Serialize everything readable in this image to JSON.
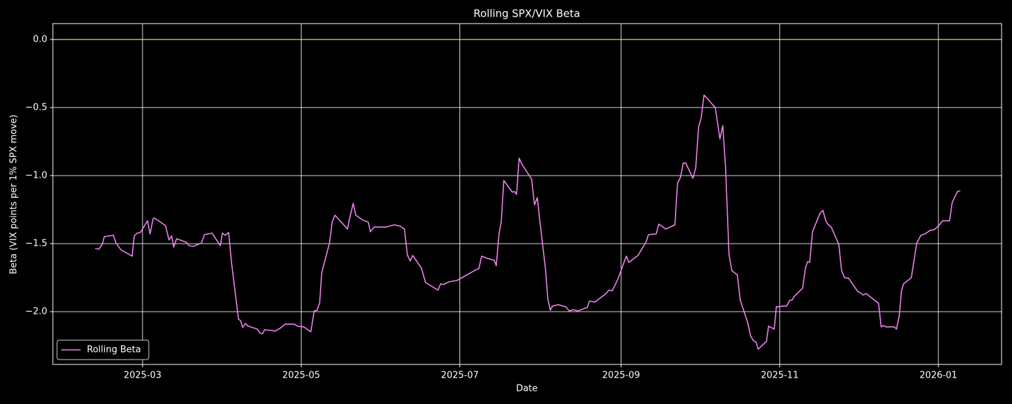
{
  "chart_data": {
    "type": "line",
    "title": "Rolling SPX/VIX Beta",
    "x_label": "Date",
    "y_label": "Beta (VIX points per 1% SPX move)",
    "xlim": [
      24.5,
      389.3
    ],
    "ylim": [
      -2.388,
      0.117
    ],
    "xticks": [
      {
        "value": 59,
        "label": "2025-03"
      },
      {
        "value": 120,
        "label": "2025-05"
      },
      {
        "value": 181,
        "label": "2025-07"
      },
      {
        "value": 243,
        "label": "2025-09"
      },
      {
        "value": 304,
        "label": "2025-11"
      },
      {
        "value": 365,
        "label": "2026-01"
      }
    ],
    "yticks": [
      {
        "value": 0,
        "label": "0.0"
      },
      {
        "value": -0.5,
        "label": "−0.5"
      },
      {
        "value": -1,
        "label": "−1.0"
      },
      {
        "value": -1.5,
        "label": "−1.5"
      },
      {
        "value": -2,
        "label": "−2.0"
      }
    ],
    "grid": true,
    "hline": {
      "y": 0,
      "color": "#e8e27a"
    },
    "legend_position": "lower left",
    "x": [
      40.8,
      42.2,
      43.5,
      44.3,
      47.8,
      48.8,
      50.7,
      55.0,
      55.8,
      56.9,
      58.2,
      60.9,
      61.9,
      63.0,
      63.5,
      67.8,
      69.2,
      70.2,
      71.0,
      72.1,
      75.8,
      76.9,
      78.5,
      81.7,
      82.8,
      85.7,
      88.9,
      89.7,
      90.8,
      92.1,
      93.2,
      95.9,
      96.7,
      97.5,
      98.5,
      99.6,
      103.1,
      104.2,
      105.0,
      106.0,
      108.4,
      110.0,
      111.9,
      113.8,
      117.3,
      118.6,
      121.0,
      123.7,
      125.0,
      126.1,
      127.1,
      127.9,
      130.9,
      131.9,
      133.0,
      137.8,
      138.6,
      140.0,
      141.0,
      143.7,
      145.8,
      146.6,
      148.0,
      149.8,
      152.8,
      155.7,
      158.1,
      159.7,
      160.8,
      161.9,
      162.9,
      166.2,
      167.8,
      172.6,
      173.6,
      174.7,
      176.8,
      180.0,
      187.5,
      188.3,
      189.4,
      191.3,
      194.2,
      195.0,
      196.1,
      196.9,
      197.9,
      201.2,
      202.0,
      202.8,
      203.8,
      204.9,
      208.6,
      209.7,
      210.8,
      211.6,
      214.0,
      214.8,
      215.8,
      216.6,
      218.8,
      221.7,
      223.1,
      224.7,
      226.3,
      230.0,
      230.8,
      233.0,
      237.2,
      238.3,
      239.6,
      241.8,
      245.0,
      246.0,
      249.5,
      252.7,
      253.5,
      256.5,
      257.5,
      260.2,
      263.7,
      264.7,
      265.8,
      266.9,
      267.9,
      270.6,
      271.7,
      272.8,
      273.8,
      274.9,
      279.2,
      281.0,
      282.1,
      283.2,
      284.5,
      285.6,
      287.7,
      288.8,
      291.7,
      292.8,
      293.9,
      294.9,
      295.7,
      298.9,
      299.7,
      301.9,
      302.7,
      304.0,
      305.1,
      306.7,
      307.8,
      308.8,
      309.6,
      312.8,
      313.9,
      314.7,
      315.5,
      316.6,
      319.5,
      320.6,
      321.7,
      322.7,
      323.8,
      326.7,
      327.8,
      328.9,
      330.5,
      334.0,
      335.0,
      336.1,
      337.2,
      342.0,
      343.0,
      343.8,
      344.9,
      348.1,
      348.9,
      350.0,
      350.8,
      351.6,
      354.6,
      356.7,
      358.3,
      359.9,
      361.8,
      363.4,
      365.2,
      366.6,
      369.3,
      370.3,
      371.4,
      372.4,
      373.4
    ],
    "series": [
      {
        "name": "Rolling Beta",
        "color": "#ee82ee",
        "values": [
          -1.536,
          -1.541,
          -1.505,
          -1.449,
          -1.439,
          -1.495,
          -1.546,
          -1.592,
          -1.444,
          -1.423,
          -1.418,
          -1.332,
          -1.429,
          -1.321,
          -1.311,
          -1.367,
          -1.474,
          -1.444,
          -1.526,
          -1.464,
          -1.49,
          -1.515,
          -1.52,
          -1.495,
          -1.434,
          -1.423,
          -1.515,
          -1.423,
          -1.439,
          -1.418,
          -1.638,
          -2.056,
          -2.066,
          -2.117,
          -2.087,
          -2.107,
          -2.128,
          -2.158,
          -2.163,
          -2.133,
          -2.138,
          -2.143,
          -2.122,
          -2.092,
          -2.092,
          -2.107,
          -2.112,
          -2.148,
          -1.995,
          -1.99,
          -1.934,
          -1.714,
          -1.495,
          -1.342,
          -1.291,
          -1.393,
          -1.316,
          -1.204,
          -1.291,
          -1.327,
          -1.342,
          -1.413,
          -1.378,
          -1.378,
          -1.378,
          -1.362,
          -1.372,
          -1.393,
          -1.582,
          -1.628,
          -1.587,
          -1.679,
          -1.786,
          -1.842,
          -1.796,
          -1.801,
          -1.781,
          -1.77,
          -1.689,
          -1.684,
          -1.592,
          -1.607,
          -1.622,
          -1.663,
          -1.423,
          -1.342,
          -1.036,
          -1.122,
          -1.117,
          -1.138,
          -0.872,
          -0.918,
          -1.026,
          -1.214,
          -1.163,
          -1.306,
          -1.699,
          -1.903,
          -1.99,
          -1.959,
          -1.949,
          -1.964,
          -1.995,
          -1.985,
          -1.995,
          -1.969,
          -1.923,
          -1.929,
          -1.867,
          -1.842,
          -1.847,
          -1.76,
          -1.592,
          -1.638,
          -1.587,
          -1.485,
          -1.434,
          -1.429,
          -1.357,
          -1.393,
          -1.362,
          -1.056,
          -1.015,
          -0.908,
          -0.908,
          -1.02,
          -0.944,
          -0.643,
          -0.577,
          -0.408,
          -0.5,
          -0.73,
          -0.633,
          -0.949,
          -1.582,
          -1.699,
          -1.73,
          -1.913,
          -2.082,
          -2.179,
          -2.214,
          -2.224,
          -2.276,
          -2.219,
          -2.107,
          -2.128,
          -1.964,
          -1.964,
          -1.959,
          -1.959,
          -1.918,
          -1.913,
          -1.888,
          -1.827,
          -1.679,
          -1.633,
          -1.638,
          -1.413,
          -1.276,
          -1.255,
          -1.332,
          -1.362,
          -1.378,
          -1.505,
          -1.699,
          -1.75,
          -1.755,
          -1.852,
          -1.862,
          -1.878,
          -1.867,
          -1.939,
          -2.112,
          -2.102,
          -2.112,
          -2.112,
          -2.128,
          -2.026,
          -1.847,
          -1.796,
          -1.75,
          -1.495,
          -1.439,
          -1.429,
          -1.403,
          -1.398,
          -1.367,
          -1.332,
          -1.332,
          -1.199,
          -1.153,
          -1.117,
          -1.112
        ]
      }
    ]
  }
}
